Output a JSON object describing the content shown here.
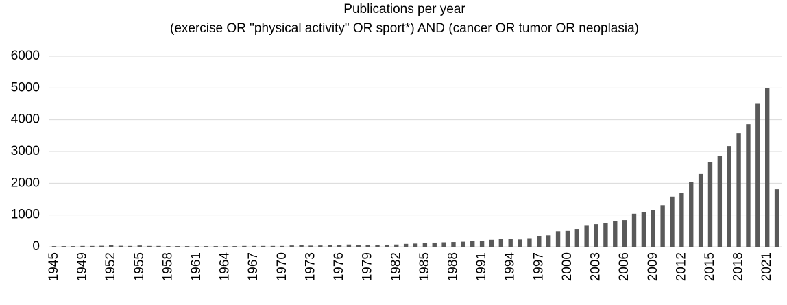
{
  "chart_data": {
    "type": "bar",
    "title": "Publications per year",
    "subtitle": "(exercise OR \"physical activity\" OR sport*) AND (cancer OR tumor OR neoplasia)",
    "categories": [
      "1945",
      null,
      null,
      "1949",
      null,
      null,
      "1952",
      null,
      null,
      "1955",
      null,
      null,
      "1958",
      null,
      null,
      "1961",
      null,
      null,
      "1964",
      null,
      null,
      "1967",
      null,
      null,
      "1970",
      null,
      null,
      "1973",
      null,
      null,
      "1976",
      null,
      null,
      "1979",
      null,
      null,
      "1982",
      null,
      null,
      "1985",
      null,
      null,
      "1988",
      null,
      null,
      "1991",
      null,
      null,
      "1994",
      null,
      null,
      "1997",
      null,
      null,
      "2000",
      null,
      null,
      "2003",
      null,
      null,
      "2006",
      null,
      null,
      "2009",
      null,
      null,
      "2012",
      null,
      null,
      "2015",
      null,
      null,
      "2018",
      null,
      null,
      "2021",
      null
    ],
    "values": [
      20,
      20,
      20,
      25,
      25,
      30,
      45,
      30,
      25,
      40,
      25,
      25,
      20,
      20,
      20,
      20,
      20,
      20,
      20,
      20,
      25,
      25,
      25,
      25,
      25,
      40,
      45,
      35,
      40,
      45,
      60,
      70,
      60,
      55,
      60,
      65,
      70,
      90,
      100,
      110,
      130,
      140,
      150,
      160,
      180,
      190,
      220,
      240,
      240,
      230,
      270,
      340,
      360,
      490,
      500,
      560,
      660,
      710,
      750,
      800,
      840,
      1040,
      1100,
      1160,
      1310,
      1580,
      1700,
      2030,
      2290,
      2660,
      2860,
      3170,
      3580,
      3860,
      4500,
      4990,
      1810
    ],
    "color": "#595959",
    "ylim": [
      0,
      6000
    ],
    "yticks": [
      0,
      1000,
      2000,
      3000,
      4000,
      5000,
      6000
    ],
    "grid": true
  }
}
